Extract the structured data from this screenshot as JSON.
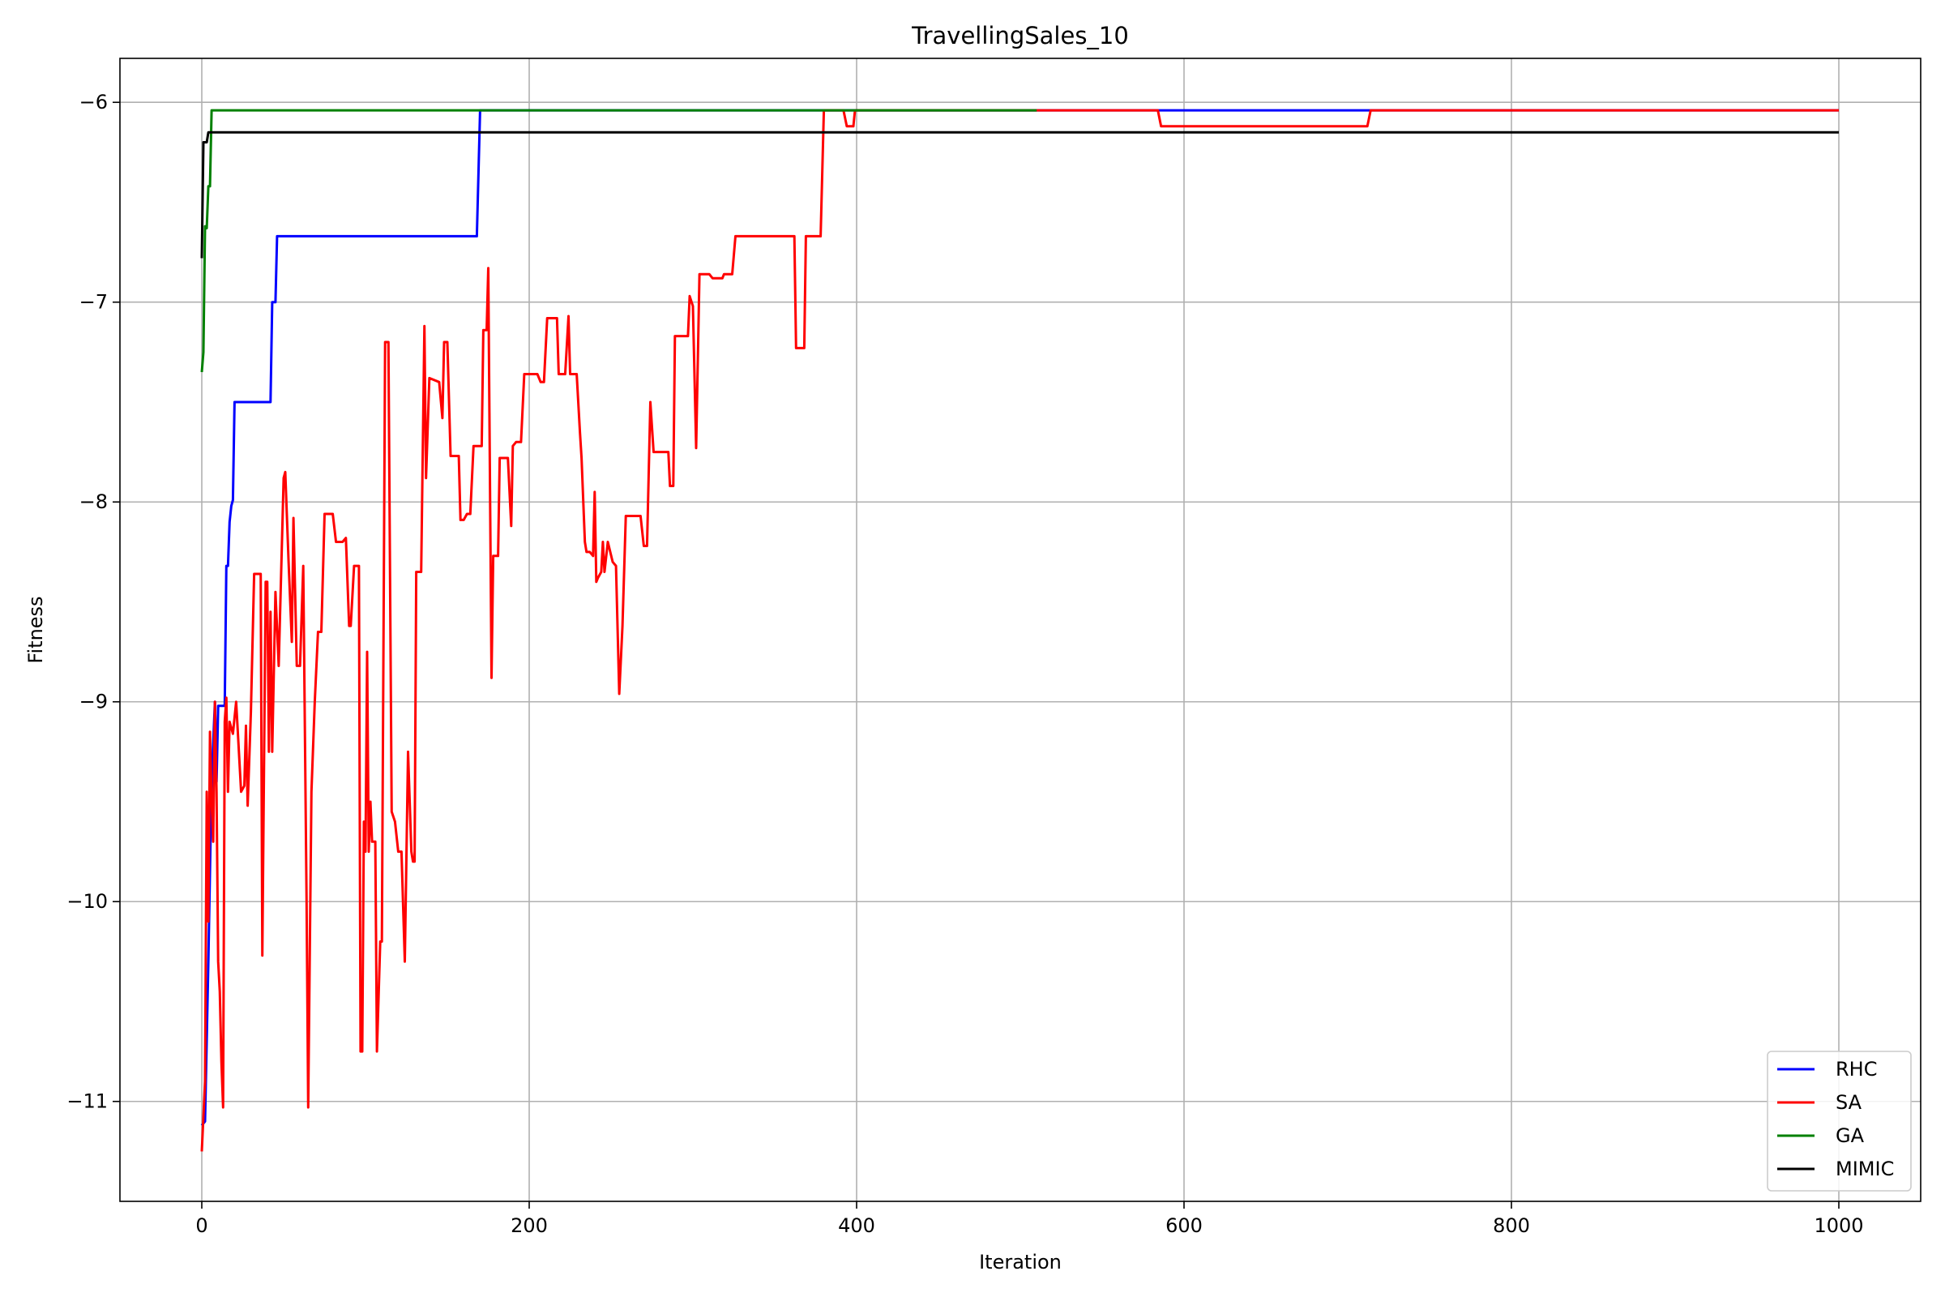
{
  "chart_data": {
    "type": "line",
    "title": "TravellingSales_10",
    "xlabel": "Iteration",
    "ylabel": "Fitness",
    "xlim": [
      -50,
      1050
    ],
    "ylim": [
      -11.5,
      -5.78
    ],
    "xticks": [
      0,
      200,
      400,
      600,
      800,
      1000
    ],
    "yticks": [
      -11,
      -10,
      -9,
      -8,
      -7,
      -6
    ],
    "ytick_labels": [
      "−11",
      "−10",
      "−9",
      "−8",
      "−7",
      "−6"
    ],
    "grid": true,
    "legend_position": "lower-right",
    "series": [
      {
        "name": "RHC",
        "color": "#0000ff",
        "points": [
          [
            0,
            -11.12
          ],
          [
            2,
            -11.1
          ],
          [
            4,
            -10.3
          ],
          [
            6,
            -9.4
          ],
          [
            8,
            -9.0
          ],
          [
            9,
            -9.4
          ],
          [
            10,
            -9.02
          ],
          [
            14,
            -9.02
          ],
          [
            15,
            -8.32
          ],
          [
            16,
            -8.32
          ],
          [
            17,
            -8.1
          ],
          [
            18,
            -8.02
          ],
          [
            19,
            -7.99
          ],
          [
            20,
            -7.5
          ],
          [
            42,
            -7.5
          ],
          [
            43,
            -7.0
          ],
          [
            45,
            -7.0
          ],
          [
            46,
            -6.67
          ],
          [
            168,
            -6.67
          ],
          [
            170,
            -6.04
          ],
          [
            1000,
            -6.04
          ]
        ]
      },
      {
        "name": "SA",
        "color": "#ff0000",
        "points": [
          [
            0,
            -11.25
          ],
          [
            2,
            -10.9
          ],
          [
            3,
            -9.45
          ],
          [
            4,
            -10.1
          ],
          [
            5,
            -9.15
          ],
          [
            6,
            -9.5
          ],
          [
            7,
            -9.7
          ],
          [
            8,
            -9.0
          ],
          [
            9,
            -9.45
          ],
          [
            10,
            -10.3
          ],
          [
            11,
            -10.45
          ],
          [
            12,
            -10.8
          ],
          [
            13,
            -11.03
          ],
          [
            14,
            -9.1
          ],
          [
            15,
            -8.98
          ],
          [
            16,
            -9.45
          ],
          [
            17,
            -9.1
          ],
          [
            19,
            -9.16
          ],
          [
            21,
            -9.0
          ],
          [
            24,
            -9.45
          ],
          [
            26,
            -9.42
          ],
          [
            27,
            -9.12
          ],
          [
            28,
            -9.52
          ],
          [
            30,
            -9.05
          ],
          [
            32,
            -8.36
          ],
          [
            36,
            -8.36
          ],
          [
            37,
            -10.27
          ],
          [
            39,
            -8.4
          ],
          [
            40,
            -8.4
          ],
          [
            41,
            -9.25
          ],
          [
            42,
            -8.55
          ],
          [
            43,
            -9.25
          ],
          [
            45,
            -8.45
          ],
          [
            47,
            -8.82
          ],
          [
            50,
            -7.88
          ],
          [
            51,
            -7.85
          ],
          [
            53,
            -8.3
          ],
          [
            55,
            -8.7
          ],
          [
            56,
            -8.08
          ],
          [
            58,
            -8.82
          ],
          [
            60,
            -8.82
          ],
          [
            62,
            -8.32
          ],
          [
            64,
            -10.0
          ],
          [
            65,
            -11.03
          ],
          [
            67,
            -9.45
          ],
          [
            69,
            -9.0
          ],
          [
            71,
            -8.65
          ],
          [
            73,
            -8.65
          ],
          [
            75,
            -8.06
          ],
          [
            80,
            -8.06
          ],
          [
            82,
            -8.2
          ],
          [
            86,
            -8.2
          ],
          [
            88,
            -8.18
          ],
          [
            90,
            -8.62
          ],
          [
            91,
            -8.62
          ],
          [
            93,
            -8.32
          ],
          [
            96,
            -8.32
          ],
          [
            97,
            -10.75
          ],
          [
            98,
            -10.75
          ],
          [
            99,
            -9.6
          ],
          [
            100,
            -9.75
          ],
          [
            101,
            -8.75
          ],
          [
            102,
            -9.75
          ],
          [
            103,
            -9.5
          ],
          [
            104,
            -9.7
          ],
          [
            106,
            -9.7
          ],
          [
            107,
            -10.75
          ],
          [
            109,
            -10.2
          ],
          [
            110,
            -10.2
          ],
          [
            112,
            -7.2
          ],
          [
            114,
            -7.2
          ],
          [
            116,
            -9.55
          ],
          [
            118,
            -9.6
          ],
          [
            120,
            -9.75
          ],
          [
            122,
            -9.75
          ],
          [
            124,
            -10.3
          ],
          [
            126,
            -9.25
          ],
          [
            128,
            -9.75
          ],
          [
            129,
            -9.8
          ],
          [
            130,
            -9.8
          ],
          [
            131,
            -8.35
          ],
          [
            134,
            -8.35
          ],
          [
            136,
            -7.12
          ],
          [
            137,
            -7.88
          ],
          [
            139,
            -7.38
          ],
          [
            145,
            -7.4
          ],
          [
            147,
            -7.58
          ],
          [
            148,
            -7.2
          ],
          [
            150,
            -7.2
          ],
          [
            152,
            -7.77
          ],
          [
            157,
            -7.77
          ],
          [
            158,
            -8.09
          ],
          [
            160,
            -8.09
          ],
          [
            162,
            -8.06
          ],
          [
            164,
            -8.06
          ],
          [
            166,
            -7.72
          ],
          [
            171,
            -7.72
          ],
          [
            172,
            -7.14
          ],
          [
            174,
            -7.14
          ],
          [
            175,
            -6.83
          ],
          [
            177,
            -8.88
          ],
          [
            178,
            -8.27
          ],
          [
            181,
            -8.27
          ],
          [
            182,
            -7.78
          ],
          [
            187,
            -7.78
          ],
          [
            189,
            -8.12
          ],
          [
            190,
            -7.72
          ],
          [
            192,
            -7.7
          ],
          [
            195,
            -7.7
          ],
          [
            197,
            -7.36
          ],
          [
            205,
            -7.36
          ],
          [
            207,
            -7.4
          ],
          [
            209,
            -7.4
          ],
          [
            211,
            -7.08
          ],
          [
            217,
            -7.08
          ],
          [
            218,
            -7.36
          ],
          [
            222,
            -7.36
          ],
          [
            224,
            -7.07
          ],
          [
            225,
            -7.36
          ],
          [
            229,
            -7.36
          ],
          [
            231,
            -7.65
          ],
          [
            232,
            -7.78
          ],
          [
            234,
            -8.2
          ],
          [
            235,
            -8.25
          ],
          [
            237,
            -8.25
          ],
          [
            239,
            -8.27
          ],
          [
            240,
            -7.95
          ],
          [
            241,
            -8.4
          ],
          [
            242,
            -8.38
          ],
          [
            244,
            -8.35
          ],
          [
            245,
            -8.2
          ],
          [
            246,
            -8.35
          ],
          [
            248,
            -8.2
          ],
          [
            251,
            -8.3
          ],
          [
            253,
            -8.32
          ],
          [
            255,
            -8.96
          ],
          [
            257,
            -8.62
          ],
          [
            259,
            -8.07
          ],
          [
            268,
            -8.07
          ],
          [
            270,
            -8.22
          ],
          [
            272,
            -8.22
          ],
          [
            274,
            -7.5
          ],
          [
            276,
            -7.75
          ],
          [
            285,
            -7.75
          ],
          [
            286,
            -7.92
          ],
          [
            288,
            -7.92
          ],
          [
            289,
            -7.17
          ],
          [
            297,
            -7.17
          ],
          [
            298,
            -6.97
          ],
          [
            300,
            -7.02
          ],
          [
            302,
            -7.73
          ],
          [
            304,
            -6.86
          ],
          [
            310,
            -6.86
          ],
          [
            312,
            -6.88
          ],
          [
            318,
            -6.88
          ],
          [
            319,
            -6.86
          ],
          [
            324,
            -6.86
          ],
          [
            326,
            -6.67
          ],
          [
            362,
            -6.67
          ],
          [
            363,
            -7.23
          ],
          [
            368,
            -7.23
          ],
          [
            369,
            -6.67
          ],
          [
            378,
            -6.67
          ],
          [
            380,
            -6.04
          ],
          [
            392,
            -6.04
          ],
          [
            394,
            -6.12
          ],
          [
            398,
            -6.12
          ],
          [
            399,
            -6.04
          ],
          [
            584,
            -6.04
          ],
          [
            586,
            -6.12
          ],
          [
            712,
            -6.12
          ],
          [
            714,
            -6.04
          ],
          [
            1000,
            -6.04
          ]
        ]
      },
      {
        "name": "GA",
        "color": "#008000",
        "points": [
          [
            0,
            -7.35
          ],
          [
            1,
            -7.25
          ],
          [
            2,
            -6.62
          ],
          [
            3,
            -6.63
          ],
          [
            4,
            -6.42
          ],
          [
            5,
            -6.42
          ],
          [
            6,
            -6.04
          ],
          [
            510,
            -6.04
          ]
        ]
      },
      {
        "name": "MIMIC",
        "color": "#000000",
        "points": [
          [
            0,
            -6.78
          ],
          [
            1,
            -6.2
          ],
          [
            3,
            -6.2
          ],
          [
            4,
            -6.15
          ],
          [
            1000,
            -6.15
          ]
        ]
      }
    ]
  }
}
